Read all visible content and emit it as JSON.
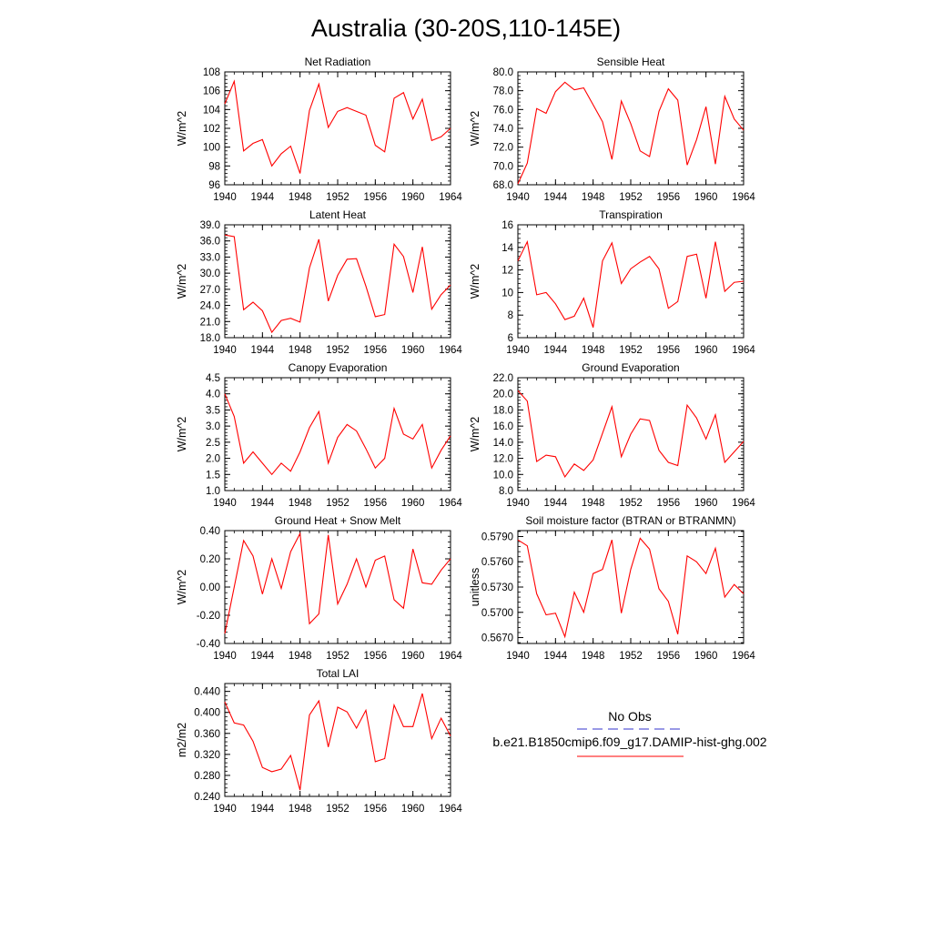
{
  "figure": {
    "title": "Australia (30-20S,110-145E)"
  },
  "legend": {
    "obs_label": "No Obs",
    "model_label": "b.e21.B1850cmip6.f09_g17.DAMIP-hist-ghg.002",
    "obs_color": "#3333cc",
    "model_color": "#ff0000"
  },
  "chart_data": [
    {
      "type": "line",
      "title": "Net Radiation",
      "ylabel": "W/m^2",
      "xlim": [
        1940,
        1964
      ],
      "ylim": [
        96,
        108
      ],
      "xticks": [
        "1940",
        "1944",
        "1948",
        "1952",
        "1956",
        "1960",
        "1964"
      ],
      "yticks": [
        "96",
        "98",
        "100",
        "102",
        "104",
        "106",
        "108"
      ],
      "x": [
        1940,
        1941,
        1942,
        1943,
        1944,
        1945,
        1946,
        1947,
        1948,
        1949,
        1950,
        1951,
        1952,
        1953,
        1954,
        1955,
        1956,
        1957,
        1958,
        1959,
        1960,
        1961,
        1962,
        1963,
        1964
      ],
      "series": [
        {
          "values": [
            104.6,
            107.0,
            99.6,
            100.4,
            100.8,
            98.0,
            99.3,
            100.1,
            97.2,
            103.9,
            106.7,
            102.1,
            103.8,
            104.2,
            103.8,
            103.4,
            100.2,
            99.5,
            105.2,
            105.8,
            103.0,
            105.1,
            100.7,
            101.1,
            102.0
          ]
        }
      ]
    },
    {
      "type": "line",
      "title": "Sensible Heat",
      "ylabel": "W/m^2",
      "xlim": [
        1940,
        1964
      ],
      "ylim": [
        68,
        80
      ],
      "xticks": [
        "1940",
        "1944",
        "1948",
        "1952",
        "1956",
        "1960",
        "1964"
      ],
      "yticks": [
        "68.0",
        "70.0",
        "72.0",
        "74.0",
        "76.0",
        "78.0",
        "80.0"
      ],
      "x": [
        1940,
        1941,
        1942,
        1943,
        1944,
        1945,
        1946,
        1947,
        1948,
        1949,
        1950,
        1951,
        1952,
        1953,
        1954,
        1955,
        1956,
        1957,
        1958,
        1959,
        1960,
        1961,
        1962,
        1963,
        1964
      ],
      "series": [
        {
          "values": [
            68.1,
            70.3,
            76.1,
            75.6,
            77.9,
            78.9,
            78.1,
            78.3,
            76.5,
            74.7,
            70.7,
            76.9,
            74.5,
            71.6,
            71.0,
            75.8,
            78.2,
            77.0,
            70.1,
            72.8,
            76.3,
            70.2,
            77.4,
            75.0,
            73.8
          ]
        }
      ]
    },
    {
      "type": "line",
      "title": "Latent Heat",
      "ylabel": "W/m^2",
      "xlim": [
        1940,
        1964
      ],
      "ylim": [
        18,
        39
      ],
      "xticks": [
        "1940",
        "1944",
        "1948",
        "1952",
        "1956",
        "1960",
        "1964"
      ],
      "yticks": [
        "18.0",
        "21.0",
        "24.0",
        "27.0",
        "30.0",
        "33.0",
        "36.0",
        "39.0"
      ],
      "x": [
        1940,
        1941,
        1942,
        1943,
        1944,
        1945,
        1946,
        1947,
        1948,
        1949,
        1950,
        1951,
        1952,
        1953,
        1954,
        1955,
        1956,
        1957,
        1958,
        1959,
        1960,
        1961,
        1962,
        1963,
        1964
      ],
      "series": [
        {
          "values": [
            37.1,
            36.8,
            23.2,
            24.6,
            23.0,
            19.0,
            21.2,
            21.6,
            20.9,
            31.0,
            36.3,
            24.8,
            29.6,
            32.6,
            32.7,
            27.6,
            21.9,
            22.3,
            35.4,
            33.1,
            26.4,
            34.9,
            23.3,
            26.0,
            27.8
          ]
        }
      ]
    },
    {
      "type": "line",
      "title": "Transpiration",
      "ylabel": "W/m^2",
      "xlim": [
        1940,
        1964
      ],
      "ylim": [
        6,
        16
      ],
      "xticks": [
        "1940",
        "1944",
        "1948",
        "1952",
        "1956",
        "1960",
        "1964"
      ],
      "yticks": [
        "6",
        "8",
        "10",
        "12",
        "14",
        "16"
      ],
      "x": [
        1940,
        1941,
        1942,
        1943,
        1944,
        1945,
        1946,
        1947,
        1948,
        1949,
        1950,
        1951,
        1952,
        1953,
        1954,
        1955,
        1956,
        1957,
        1958,
        1959,
        1960,
        1961,
        1962,
        1963,
        1964
      ],
      "series": [
        {
          "values": [
            12.8,
            14.5,
            9.8,
            10.0,
            9.0,
            7.6,
            7.9,
            9.5,
            6.9,
            12.8,
            14.4,
            10.8,
            12.1,
            12.7,
            13.2,
            12.1,
            8.6,
            9.2,
            13.2,
            13.4,
            9.5,
            14.5,
            10.1,
            10.9,
            11.0
          ]
        }
      ]
    },
    {
      "type": "line",
      "title": "Canopy Evaporation",
      "ylabel": "W/m^2",
      "xlim": [
        1940,
        1964
      ],
      "ylim": [
        1.0,
        4.5
      ],
      "xticks": [
        "1940",
        "1944",
        "1948",
        "1952",
        "1956",
        "1960",
        "1964"
      ],
      "yticks": [
        "1.0",
        "1.5",
        "2.0",
        "2.5",
        "3.0",
        "3.5",
        "4.0",
        "4.5"
      ],
      "x": [
        1940,
        1941,
        1942,
        1943,
        1944,
        1945,
        1946,
        1947,
        1948,
        1949,
        1950,
        1951,
        1952,
        1953,
        1954,
        1955,
        1956,
        1957,
        1958,
        1959,
        1960,
        1961,
        1962,
        1963,
        1964
      ],
      "series": [
        {
          "values": [
            4.0,
            3.3,
            1.85,
            2.2,
            1.85,
            1.5,
            1.85,
            1.6,
            2.2,
            2.95,
            3.45,
            1.85,
            2.65,
            3.05,
            2.85,
            2.3,
            1.7,
            2.0,
            3.55,
            2.75,
            2.6,
            3.05,
            1.7,
            2.25,
            2.7
          ]
        }
      ]
    },
    {
      "type": "line",
      "title": "Ground Evaporation",
      "ylabel": "W/m^2",
      "xlim": [
        1940,
        1964
      ],
      "ylim": [
        8,
        22
      ],
      "xticks": [
        "1940",
        "1944",
        "1948",
        "1952",
        "1956",
        "1960",
        "1964"
      ],
      "yticks": [
        "8.0",
        "10.0",
        "12.0",
        "14.0",
        "16.0",
        "18.0",
        "20.0",
        "22.0"
      ],
      "x": [
        1940,
        1941,
        1942,
        1943,
        1944,
        1945,
        1946,
        1947,
        1948,
        1949,
        1950,
        1951,
        1952,
        1953,
        1954,
        1955,
        1956,
        1957,
        1958,
        1959,
        1960,
        1961,
        1962,
        1963,
        1964
      ],
      "series": [
        {
          "values": [
            20.4,
            19.1,
            11.6,
            12.4,
            12.2,
            9.7,
            11.3,
            10.5,
            11.8,
            15.1,
            18.4,
            12.2,
            15.0,
            16.9,
            16.7,
            13.0,
            11.5,
            11.1,
            18.6,
            17.0,
            14.4,
            17.4,
            11.5,
            12.8,
            14.1
          ]
        }
      ]
    },
    {
      "type": "line",
      "title": "Ground Heat + Snow Melt",
      "ylabel": "W/m^2",
      "xlim": [
        1940,
        1964
      ],
      "ylim": [
        -0.4,
        0.4
      ],
      "xticks": [
        "1940",
        "1944",
        "1948",
        "1952",
        "1956",
        "1960",
        "1964"
      ],
      "yticks": [
        "-0.40",
        "-0.20",
        "0.00",
        "0.20",
        "0.40"
      ],
      "x": [
        1940,
        1941,
        1942,
        1943,
        1944,
        1945,
        1946,
        1947,
        1948,
        1949,
        1950,
        1951,
        1952,
        1953,
        1954,
        1955,
        1956,
        1957,
        1958,
        1959,
        1960,
        1961,
        1962,
        1963,
        1964
      ],
      "series": [
        {
          "values": [
            -0.33,
            0.0,
            0.33,
            0.22,
            -0.05,
            0.2,
            -0.01,
            0.25,
            0.38,
            -0.26,
            -0.19,
            0.37,
            -0.12,
            0.02,
            0.2,
            0.0,
            0.19,
            0.22,
            -0.09,
            -0.15,
            0.27,
            0.03,
            0.02,
            0.12,
            0.2
          ]
        }
      ]
    },
    {
      "type": "line",
      "title": "Soil moisture factor (BTRAN or BTRANMN)",
      "ylabel": "unitless",
      "xlim": [
        1940,
        1964
      ],
      "ylim": [
        0.5663,
        0.5797
      ],
      "xticks": [
        "1940",
        "1944",
        "1948",
        "1952",
        "1956",
        "1960",
        "1964"
      ],
      "yticks": [
        "0.5670",
        "0.5700",
        "0.5730",
        "0.5760",
        "0.5790"
      ],
      "x": [
        1940,
        1941,
        1942,
        1943,
        1944,
        1945,
        1946,
        1947,
        1948,
        1949,
        1950,
        1951,
        1952,
        1953,
        1954,
        1955,
        1956,
        1957,
        1958,
        1959,
        1960,
        1961,
        1962,
        1963,
        1964
      ],
      "series": [
        {
          "values": [
            0.5786,
            0.5779,
            0.5722,
            0.5697,
            0.5699,
            0.5671,
            0.5724,
            0.57,
            0.5746,
            0.5751,
            0.5786,
            0.5699,
            0.5751,
            0.5788,
            0.5775,
            0.5728,
            0.5713,
            0.5674,
            0.5767,
            0.576,
            0.5746,
            0.5776,
            0.5718,
            0.5733,
            0.5722
          ]
        }
      ]
    },
    {
      "type": "line",
      "title": "Total LAI",
      "ylabel": "m2/m2",
      "xlim": [
        1940,
        1964
      ],
      "ylim": [
        0.24,
        0.455
      ],
      "xticks": [
        "1940",
        "1944",
        "1948",
        "1952",
        "1956",
        "1960",
        "1964"
      ],
      "yticks": [
        "0.240",
        "0.280",
        "0.320",
        "0.360",
        "0.400",
        "0.440"
      ],
      "x": [
        1940,
        1941,
        1942,
        1943,
        1944,
        1945,
        1946,
        1947,
        1948,
        1949,
        1950,
        1951,
        1952,
        1953,
        1954,
        1955,
        1956,
        1957,
        1958,
        1959,
        1960,
        1961,
        1962,
        1963,
        1964
      ],
      "series": [
        {
          "values": [
            0.42,
            0.38,
            0.376,
            0.345,
            0.295,
            0.287,
            0.292,
            0.318,
            0.252,
            0.395,
            0.422,
            0.334,
            0.41,
            0.401,
            0.37,
            0.404,
            0.306,
            0.312,
            0.414,
            0.373,
            0.373,
            0.436,
            0.35,
            0.389,
            0.355
          ]
        }
      ]
    }
  ]
}
